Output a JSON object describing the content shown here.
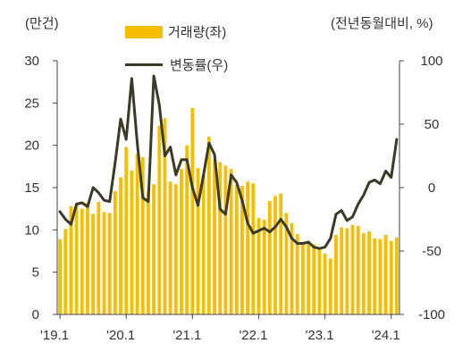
{
  "units": {
    "left": "(만건)",
    "right": "(전년동월대비, %)"
  },
  "legend": {
    "bar": "거래량(좌)",
    "line": "변동률(우)"
  },
  "colors": {
    "bar": "#F5BE00",
    "line": "#3A3A27",
    "axis": "#444444"
  },
  "chart_data": {
    "type": "bar+line",
    "x_tick_labels": [
      "'19.1",
      "'20.1",
      "'21.1",
      "'22.1",
      "'23.1",
      "'24.1"
    ],
    "x_tick_months": [
      0,
      12,
      24,
      36,
      48,
      60
    ],
    "y_left": {
      "ticks": [
        0,
        5,
        10,
        15,
        20,
        25,
        30
      ],
      "range": [
        0,
        30
      ]
    },
    "y_right": {
      "ticks": [
        -100,
        -50,
        0,
        50,
        100
      ],
      "range": [
        -100,
        100
      ]
    },
    "grid": false,
    "series": [
      {
        "name": "거래량(좌)",
        "type": "bar",
        "axis": "left",
        "values": [
          8.9,
          10.1,
          12.8,
          13.0,
          12.5,
          13.2,
          11.9,
          13.3,
          12.1,
          12.0,
          14.6,
          16.2,
          19.8,
          17.0,
          19.0,
          18.6,
          14.6,
          15.4,
          22.3,
          23.2,
          15.7,
          15.4,
          17.2,
          20.0,
          24.4,
          17.3,
          16.5,
          21.0,
          18.3,
          18.0,
          17.6,
          17.2,
          15.3,
          15.2,
          15.7,
          15.5,
          11.4,
          11.2,
          13.4,
          14.0,
          14.3,
          12.0,
          10.8,
          9.5,
          8.5,
          8.7,
          8.3,
          7.9,
          7.2,
          6.6,
          9.4,
          10.3,
          10.2,
          10.6,
          10.5,
          9.6,
          9.8,
          9.0,
          8.9,
          9.4,
          8.7,
          9.1
        ]
      },
      {
        "name": "변동률(우)",
        "type": "line",
        "axis": "right",
        "values": [
          -19,
          -25,
          -29,
          -13,
          -12,
          -15,
          0,
          -4,
          -10,
          -11,
          20,
          54,
          38,
          86,
          35,
          -8,
          -11,
          88,
          65,
          25,
          32,
          10,
          22,
          22,
          0,
          -14,
          10,
          35,
          26,
          -17,
          -21,
          10,
          4,
          -10,
          -28,
          -36,
          -34,
          -32,
          -35,
          -31,
          -25,
          -31,
          -40,
          -44,
          -44,
          -43,
          -47,
          -48,
          -47,
          -40,
          -21,
          -18,
          -26,
          -23,
          -13,
          -6,
          4,
          6,
          3,
          13,
          8,
          38
        ]
      }
    ]
  }
}
